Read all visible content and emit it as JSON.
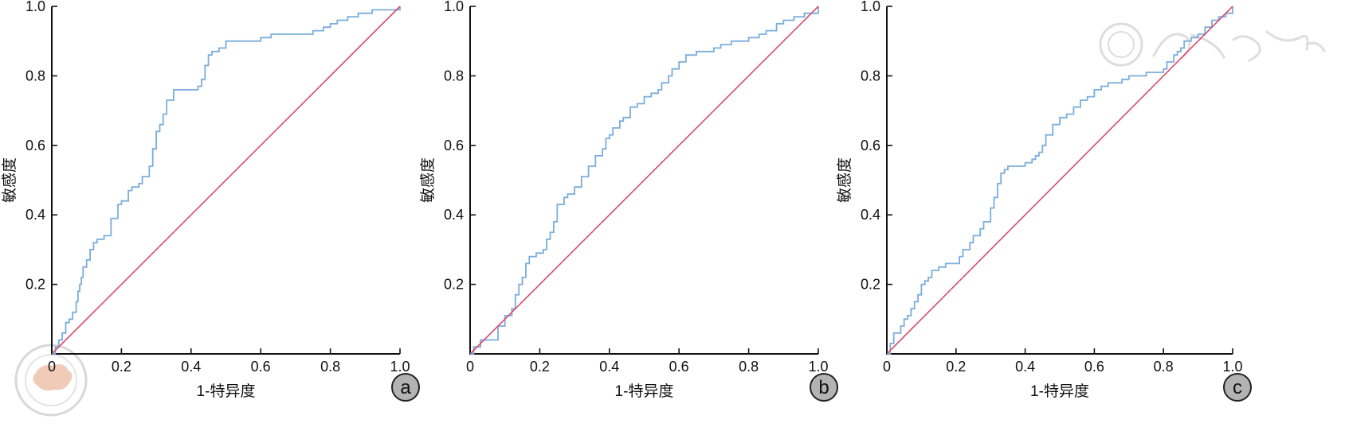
{
  "chart_data": [
    {
      "type": "line",
      "panel_label": "a",
      "xlabel": "1-特异度",
      "ylabel": "敏感度",
      "xlim": [
        0,
        1
      ],
      "ylim": [
        0,
        1
      ],
      "x_ticks": [
        "0",
        "0.2",
        "0.4",
        "0.6",
        "0.8",
        "1.0"
      ],
      "y_ticks": [
        "0.2",
        "0.4",
        "0.6",
        "0.8",
        "1.0"
      ],
      "grid": false,
      "series": [
        {
          "role": "roc",
          "color": "#7aaedc",
          "step": true,
          "x": [
            0,
            0.01,
            0.02,
            0.03,
            0.04,
            0.05,
            0.06,
            0.07,
            0.075,
            0.08,
            0.085,
            0.09,
            0.1,
            0.11,
            0.12,
            0.13,
            0.15,
            0.17,
            0.19,
            0.2,
            0.22,
            0.23,
            0.25,
            0.26,
            0.28,
            0.29,
            0.3,
            0.31,
            0.32,
            0.33,
            0.35,
            0.36,
            0.38,
            0.4,
            0.42,
            0.43,
            0.44,
            0.45,
            0.46,
            0.48,
            0.5,
            0.55,
            0.6,
            0.63,
            0.66,
            0.7,
            0.75,
            0.78,
            0.8,
            0.82,
            0.85,
            0.88,
            0.92,
            0.95,
            1.0
          ],
          "y": [
            0,
            0.02,
            0.04,
            0.06,
            0.09,
            0.1,
            0.12,
            0.15,
            0.18,
            0.2,
            0.22,
            0.25,
            0.27,
            0.3,
            0.32,
            0.33,
            0.34,
            0.39,
            0.43,
            0.44,
            0.47,
            0.48,
            0.49,
            0.51,
            0.54,
            0.59,
            0.64,
            0.66,
            0.69,
            0.73,
            0.76,
            0.76,
            0.76,
            0.76,
            0.77,
            0.79,
            0.83,
            0.86,
            0.87,
            0.88,
            0.9,
            0.9,
            0.91,
            0.92,
            0.92,
            0.92,
            0.93,
            0.94,
            0.95,
            0.96,
            0.97,
            0.98,
            0.99,
            0.99,
            1.0
          ]
        },
        {
          "role": "reference",
          "color": "#d84b6d",
          "step": false,
          "x": [
            0,
            1
          ],
          "y": [
            0,
            1
          ]
        }
      ]
    },
    {
      "type": "line",
      "panel_label": "b",
      "xlabel": "1-特异度",
      "ylabel": "敏感度",
      "xlim": [
        0,
        1
      ],
      "ylim": [
        0,
        1
      ],
      "x_ticks": [
        "0",
        "0.2",
        "0.4",
        "0.6",
        "0.8",
        "1.0"
      ],
      "y_ticks": [
        "0.2",
        "0.4",
        "0.6",
        "0.8",
        "1.0"
      ],
      "grid": false,
      "series": [
        {
          "role": "roc",
          "color": "#7aaedc",
          "step": true,
          "x": [
            0,
            0.01,
            0.03,
            0.06,
            0.08,
            0.1,
            0.12,
            0.13,
            0.14,
            0.15,
            0.16,
            0.17,
            0.19,
            0.21,
            0.22,
            0.23,
            0.24,
            0.25,
            0.27,
            0.28,
            0.3,
            0.32,
            0.34,
            0.36,
            0.38,
            0.39,
            0.4,
            0.41,
            0.43,
            0.44,
            0.46,
            0.48,
            0.5,
            0.52,
            0.54,
            0.55,
            0.57,
            0.58,
            0.6,
            0.62,
            0.65,
            0.68,
            0.7,
            0.72,
            0.75,
            0.78,
            0.8,
            0.83,
            0.85,
            0.88,
            0.9,
            0.93,
            0.96,
            1.0
          ],
          "y": [
            0,
            0.02,
            0.04,
            0.04,
            0.08,
            0.11,
            0.13,
            0.17,
            0.2,
            0.22,
            0.26,
            0.28,
            0.29,
            0.3,
            0.33,
            0.35,
            0.38,
            0.43,
            0.45,
            0.46,
            0.48,
            0.51,
            0.54,
            0.57,
            0.59,
            0.62,
            0.63,
            0.65,
            0.67,
            0.68,
            0.71,
            0.72,
            0.74,
            0.75,
            0.76,
            0.78,
            0.8,
            0.82,
            0.84,
            0.86,
            0.87,
            0.87,
            0.88,
            0.89,
            0.9,
            0.9,
            0.91,
            0.92,
            0.93,
            0.95,
            0.96,
            0.97,
            0.98,
            1.0
          ]
        },
        {
          "role": "reference",
          "color": "#d84b6d",
          "step": false,
          "x": [
            0,
            1
          ],
          "y": [
            0,
            1
          ]
        }
      ]
    },
    {
      "type": "line",
      "panel_label": "c",
      "xlabel": "1-特异度",
      "ylabel": "敏感度",
      "xlim": [
        0,
        1
      ],
      "ylim": [
        0,
        1
      ],
      "x_ticks": [
        "0",
        "0.2",
        "0.4",
        "0.6",
        "0.8",
        "1.0"
      ],
      "y_ticks": [
        "0.2",
        "0.4",
        "0.6",
        "0.8",
        "1.0"
      ],
      "grid": false,
      "series": [
        {
          "role": "roc",
          "color": "#7aaedc",
          "step": true,
          "x": [
            0,
            0.01,
            0.02,
            0.04,
            0.05,
            0.06,
            0.07,
            0.08,
            0.09,
            0.1,
            0.11,
            0.12,
            0.13,
            0.15,
            0.17,
            0.19,
            0.21,
            0.22,
            0.24,
            0.25,
            0.27,
            0.28,
            0.3,
            0.31,
            0.32,
            0.33,
            0.34,
            0.35,
            0.36,
            0.38,
            0.4,
            0.42,
            0.43,
            0.44,
            0.45,
            0.46,
            0.48,
            0.5,
            0.52,
            0.54,
            0.56,
            0.58,
            0.6,
            0.62,
            0.64,
            0.66,
            0.68,
            0.7,
            0.72,
            0.75,
            0.78,
            0.8,
            0.81,
            0.83,
            0.84,
            0.85,
            0.86,
            0.88,
            0.9,
            0.92,
            0.94,
            0.96,
            0.98,
            1.0
          ],
          "y": [
            0,
            0.03,
            0.06,
            0.08,
            0.1,
            0.11,
            0.13,
            0.15,
            0.17,
            0.2,
            0.21,
            0.22,
            0.24,
            0.25,
            0.26,
            0.26,
            0.28,
            0.3,
            0.32,
            0.34,
            0.36,
            0.38,
            0.42,
            0.45,
            0.49,
            0.52,
            0.53,
            0.54,
            0.54,
            0.54,
            0.55,
            0.56,
            0.57,
            0.58,
            0.6,
            0.63,
            0.66,
            0.68,
            0.69,
            0.71,
            0.73,
            0.74,
            0.76,
            0.77,
            0.78,
            0.78,
            0.79,
            0.8,
            0.8,
            0.81,
            0.81,
            0.82,
            0.84,
            0.86,
            0.87,
            0.88,
            0.9,
            0.91,
            0.92,
            0.94,
            0.96,
            0.97,
            0.98,
            1.0
          ]
        },
        {
          "role": "reference",
          "color": "#d84b6d",
          "step": false,
          "x": [
            0,
            1
          ],
          "y": [
            0,
            1
          ]
        }
      ]
    }
  ],
  "watermark": {
    "symbol": "seal-icon",
    "seal_color": "#e4a17d"
  }
}
